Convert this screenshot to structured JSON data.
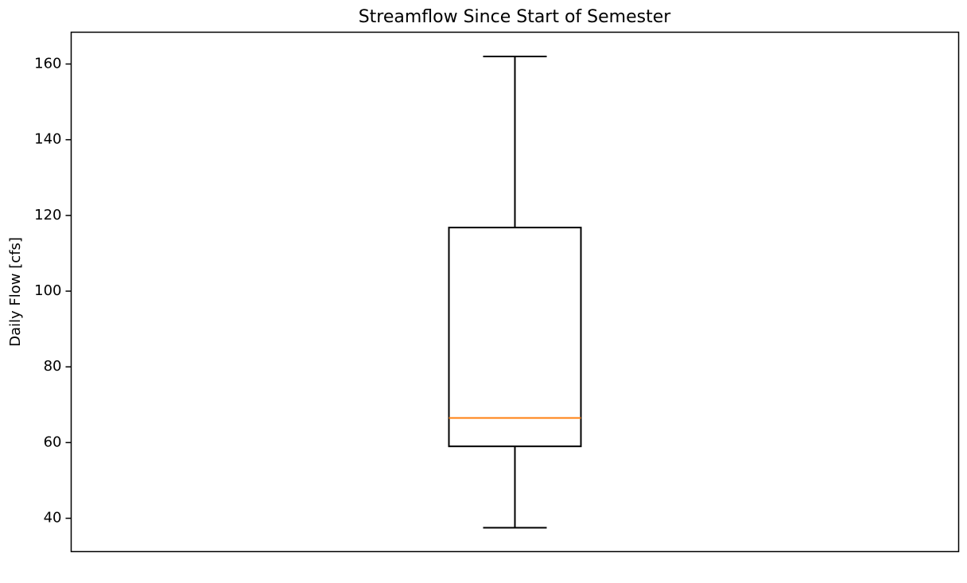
{
  "chart_data": {
    "type": "boxplot",
    "title": "Streamflow Since Start of Semester",
    "xlabel": "",
    "ylabel": "Daily Flow [cfs]",
    "ylim": [
      31.2,
      168.4
    ],
    "yticks": [
      40,
      60,
      80,
      100,
      120,
      140,
      160
    ],
    "x_ticks_shown": false,
    "grid": false,
    "box": {
      "whisker_low": 37.5,
      "q1": 59.0,
      "median": 66.5,
      "q3": 116.8,
      "whisker_high": 162.0
    },
    "colors": {
      "box": "#000000",
      "median": "#ff7f0e",
      "axes": "#000000"
    }
  }
}
